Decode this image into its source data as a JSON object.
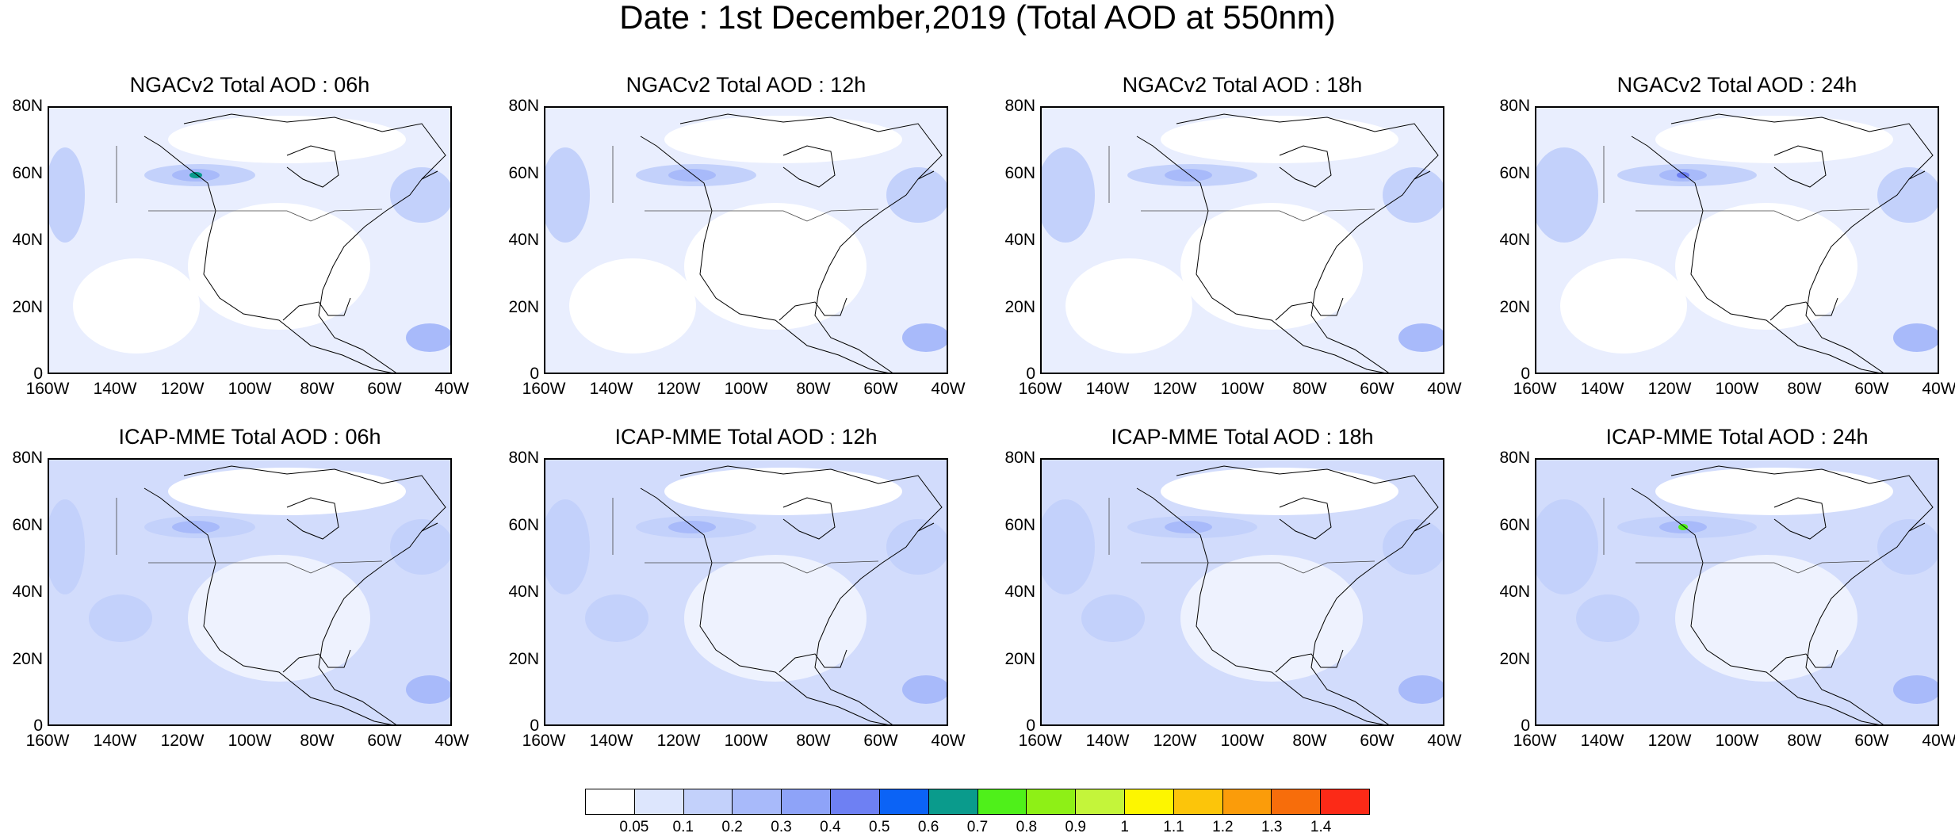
{
  "title": "Date : 1st December,2019 (Total AOD at 550nm)",
  "panels": [
    {
      "title": "NGACv2 Total AOD : 06h",
      "model": "NGACv2",
      "hour": "06h"
    },
    {
      "title": "NGACv2 Total AOD : 12h",
      "model": "NGACv2",
      "hour": "12h"
    },
    {
      "title": "NGACv2 Total AOD : 18h",
      "model": "NGACv2",
      "hour": "18h"
    },
    {
      "title": "NGACv2 Total AOD : 24h",
      "model": "NGACv2",
      "hour": "24h"
    },
    {
      "title": "ICAP-MME Total AOD : 06h",
      "model": "ICAP-MME",
      "hour": "06h"
    },
    {
      "title": "ICAP-MME Total AOD : 12h",
      "model": "ICAP-MME",
      "hour": "12h"
    },
    {
      "title": "ICAP-MME Total AOD : 18h",
      "model": "ICAP-MME",
      "hour": "18h"
    },
    {
      "title": "ICAP-MME Total AOD : 24h",
      "model": "ICAP-MME",
      "hour": "24h"
    }
  ],
  "lat_ticks": [
    "80N",
    "60N",
    "40N",
    "20N",
    "0"
  ],
  "lon_ticks": [
    "160W",
    "140W",
    "120W",
    "100W",
    "80W",
    "60W",
    "40W"
  ],
  "colorbar": {
    "labels": [
      "0.05",
      "0.1",
      "0.2",
      "0.3",
      "0.4",
      "0.5",
      "0.6",
      "0.7",
      "0.8",
      "0.9",
      "1",
      "1.1",
      "1.2",
      "1.3",
      "1.4"
    ],
    "colors": [
      "#ffffff",
      "#dde6fd",
      "#c3d1fb",
      "#a8bafa",
      "#8ea3f8",
      "#6e80f3",
      "#0b63f6",
      "#0a9b8c",
      "#4ff01a",
      "#8ef016",
      "#c4f53a",
      "#fdf600",
      "#fcc50a",
      "#fb9c0a",
      "#f76d0b",
      "#fc2a17"
    ]
  }
}
